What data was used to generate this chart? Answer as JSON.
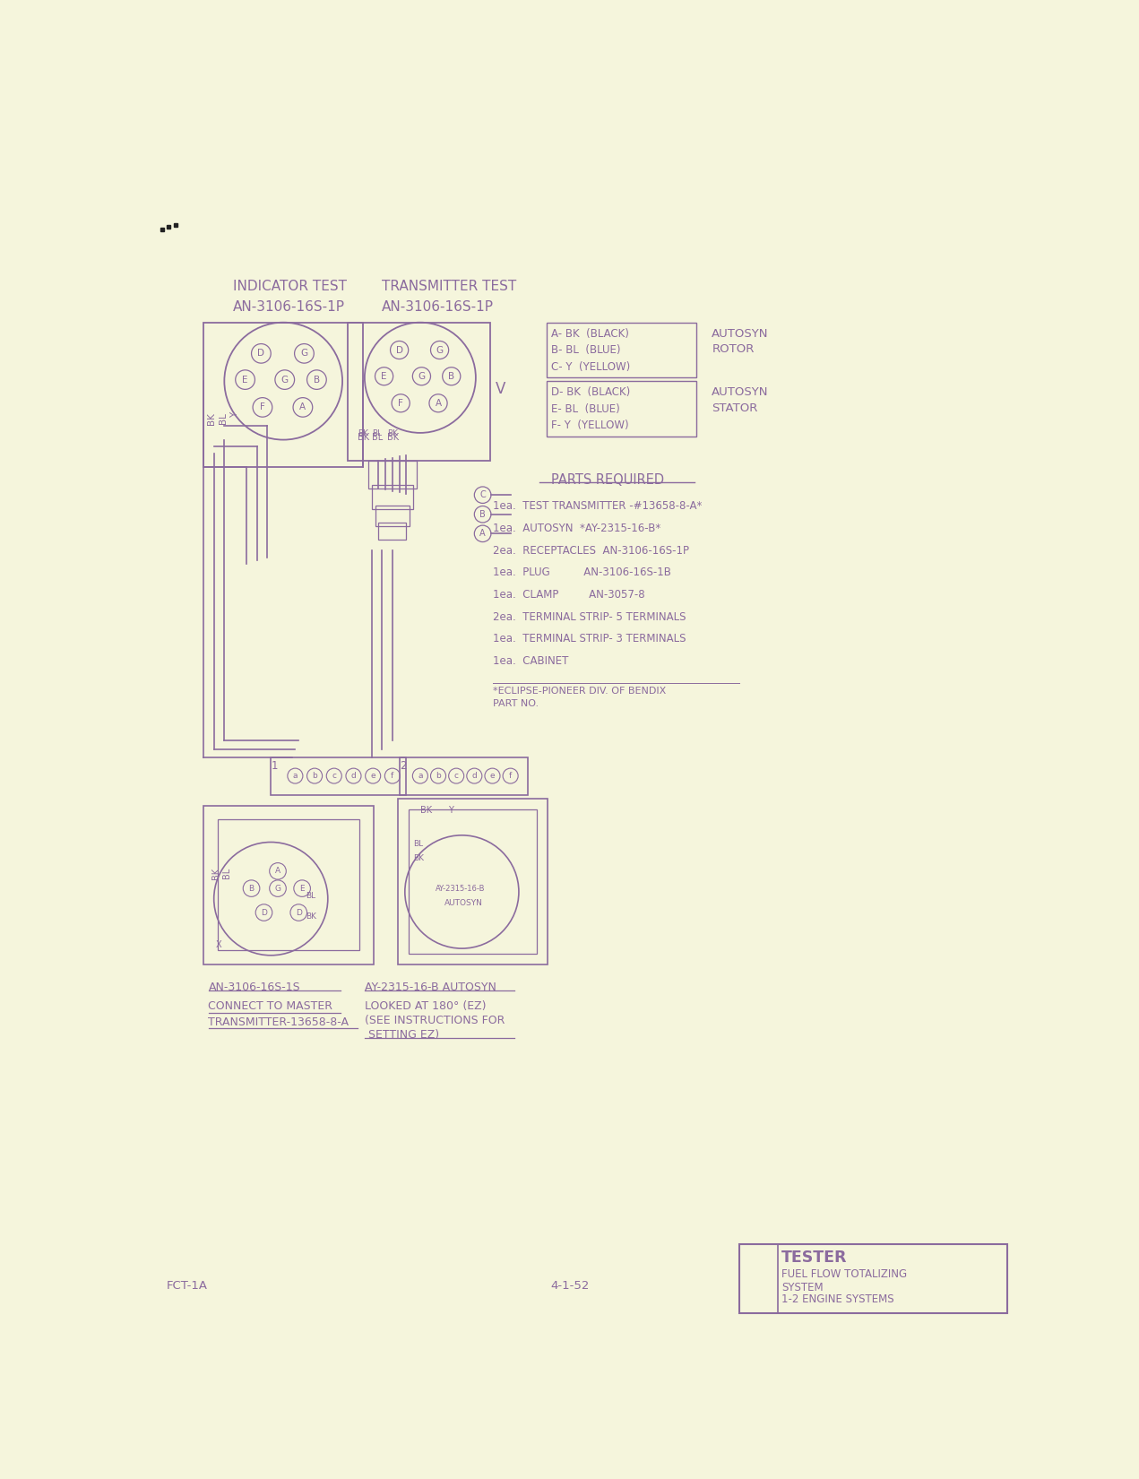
{
  "bg_color": "#F5F5DC",
  "ink_color": "#8B6B9E",
  "page_width": 12.71,
  "page_height": 16.5,
  "title_indicator": "INDICATOR TEST",
  "title_transmitter": "TRANSMITTER TEST",
  "sub_indicator": "AN-3106-16S-1P",
  "sub_transmitter": "AN-3106-16S-1P",
  "legend_rotor": [
    "A- BK  (BLACK)",
    "B- BL  (BLUE)",
    "C- Y  (YELLOW)"
  ],
  "legend_stator": [
    "D- BK  (BLACK)",
    "E- BL  (BLUE)",
    "F- Y  (YELLOW)"
  ],
  "parts_title": "PARTS REQUIRED",
  "parts_list": [
    "1ea.  TEST TRANSMITTER -#13658-8-A*",
    "1ea.  AUTOSYN  *AY-2315-16-B*",
    "2ea.  RECEPTACLES  AN-3106-16S-1P",
    "1ea.  PLUG          AN-3106-16S-1B",
    "1ea.  CLAMP         AN-3057-8",
    "2ea.  TERMINAL STRIP- 5 TERMINALS",
    "1ea.  TERMINAL STRIP- 3 TERMINALS",
    "1ea.  CABINET"
  ],
  "footnote_line1": "*ECLIPSE-PIONEER DIV. OF BENDIX",
  "footnote_line2": "PART NO.",
  "bottom_left_label1": "AN-3106-16S-1S",
  "bottom_left_label2": "CONNECT TO MASTER",
  "bottom_left_label3": "TRANSMITTER-13658-8-A",
  "bottom_right_label1": "AY-2315-16-B AUTOSYN",
  "bottom_right_label2": "LOOKED AT 180° (EZ)",
  "bottom_right_label3": "(SEE INSTRUCTIONS FOR",
  "bottom_right_label4": " SETTING EZ)",
  "corner_label": "FCT-1A",
  "date_label": "4-1-52",
  "title_box_line1": "TESTER",
  "title_box_line2": "FUEL FLOW TOTALIZING",
  "title_box_line3": "SYSTEM",
  "title_box_line4": "1-2 ENGINE SYSTEMS"
}
